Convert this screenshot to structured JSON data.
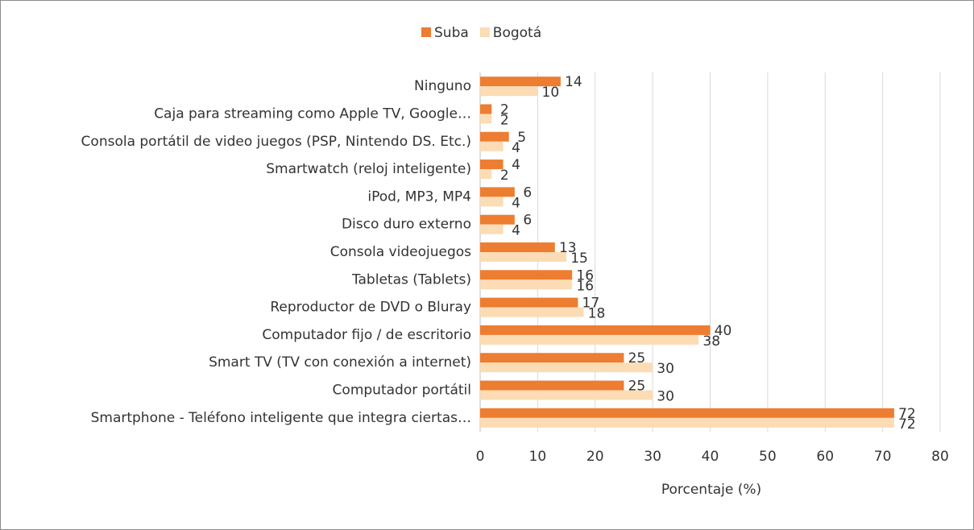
{
  "chart_data": {
    "type": "bar",
    "orientation": "horizontal",
    "categories": [
      "Ninguno",
      "Caja para streaming como Apple TV, Google…",
      "Consola portátil de video juegos (PSP, Nintendo DS. Etc.)",
      "Smartwatch (reloj inteligente)",
      "iPod, MP3, MP4",
      "Disco duro externo",
      "Consola videojuegos",
      "Tabletas (Tablets)",
      "Reproductor de DVD o Bluray",
      "Computador fijo / de escritorio",
      "Smart TV (TV con conexión a internet)",
      "Computador portátil",
      "Smartphone - Teléfono inteligente que integra ciertas…"
    ],
    "series": [
      {
        "name": "Suba",
        "color": "#ed7d31",
        "values": [
          14,
          2,
          5,
          4,
          6,
          6,
          13,
          16,
          17,
          40,
          25,
          25,
          72
        ]
      },
      {
        "name": "Bogotá",
        "color": "#fbdcb5",
        "values": [
          10,
          2,
          4,
          2,
          4,
          4,
          15,
          16,
          18,
          38,
          30,
          30,
          72
        ]
      }
    ],
    "xlim": [
      0,
      80
    ],
    "xticks": [
      0,
      10,
      20,
      30,
      40,
      50,
      60,
      70,
      80
    ],
    "xlabel": "Porcentaje (%)",
    "grid": true,
    "legend": "top"
  }
}
